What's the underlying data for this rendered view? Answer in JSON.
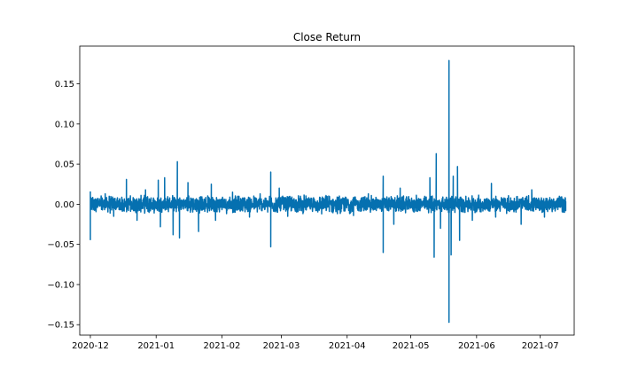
{
  "chart_data": {
    "type": "line",
    "title": "Close Return",
    "xlabel": "",
    "ylabel": "",
    "x_range": [
      "2020-11-26",
      "2021-07-17"
    ],
    "ylim": [
      -0.163,
      0.197
    ],
    "x_ticks": [
      "2020-12",
      "2021-01",
      "2021-02",
      "2021-03",
      "2021-04",
      "2021-05",
      "2021-06",
      "2021-07"
    ],
    "x_tick_dates": [
      "2020-12-01",
      "2021-01-01",
      "2021-02-01",
      "2021-03-01",
      "2021-04-01",
      "2021-05-01",
      "2021-06-01",
      "2021-07-01"
    ],
    "y_ticks": [
      "0.15",
      "0.10",
      "0.05",
      "0.00",
      "−0.05",
      "−0.10",
      "−0.15"
    ],
    "y_tick_values": [
      0.15,
      0.1,
      0.05,
      0.0,
      -0.05,
      -0.1,
      -0.15
    ],
    "grid": false,
    "legend": "none",
    "series": [
      {
        "color": "#0570b0",
        "noise_band": 0.012,
        "points": [
          {
            "x": "2020-12-01",
            "y": 0.016
          },
          {
            "x": "2020-12-01",
            "y": -0.044
          },
          {
            "x": "2020-12-08",
            "y": 0.013
          },
          {
            "x": "2020-12-12",
            "y": -0.015
          },
          {
            "x": "2020-12-18",
            "y": 0.031
          },
          {
            "x": "2020-12-23",
            "y": -0.02
          },
          {
            "x": "2020-12-27",
            "y": 0.018
          },
          {
            "x": "2021-01-02",
            "y": 0.03
          },
          {
            "x": "2021-01-03",
            "y": -0.028
          },
          {
            "x": "2021-01-05",
            "y": 0.033
          },
          {
            "x": "2021-01-09",
            "y": -0.038
          },
          {
            "x": "2021-01-11",
            "y": 0.053
          },
          {
            "x": "2021-01-12",
            "y": -0.042
          },
          {
            "x": "2021-01-16",
            "y": 0.027
          },
          {
            "x": "2021-01-21",
            "y": -0.034
          },
          {
            "x": "2021-01-27",
            "y": 0.025
          },
          {
            "x": "2021-01-29",
            "y": -0.02
          },
          {
            "x": "2021-02-06",
            "y": 0.015
          },
          {
            "x": "2021-02-14",
            "y": -0.016
          },
          {
            "x": "2021-02-19",
            "y": 0.013
          },
          {
            "x": "2021-02-24",
            "y": 0.04
          },
          {
            "x": "2021-02-24",
            "y": -0.053
          },
          {
            "x": "2021-02-28",
            "y": 0.02
          },
          {
            "x": "2021-03-04",
            "y": -0.015
          },
          {
            "x": "2021-03-10",
            "y": 0.01
          },
          {
            "x": "2021-03-20",
            "y": -0.012
          },
          {
            "x": "2021-04-04",
            "y": -0.014
          },
          {
            "x": "2021-04-11",
            "y": 0.013
          },
          {
            "x": "2021-04-18",
            "y": 0.035
          },
          {
            "x": "2021-04-18",
            "y": -0.06
          },
          {
            "x": "2021-04-23",
            "y": -0.025
          },
          {
            "x": "2021-04-26",
            "y": 0.02
          },
          {
            "x": "2021-05-10",
            "y": 0.033
          },
          {
            "x": "2021-05-12",
            "y": -0.066
          },
          {
            "x": "2021-05-13",
            "y": 0.063
          },
          {
            "x": "2021-05-15",
            "y": -0.03
          },
          {
            "x": "2021-05-19",
            "y": 0.179
          },
          {
            "x": "2021-05-19",
            "y": -0.147
          },
          {
            "x": "2021-05-19",
            "y": 0.135
          },
          {
            "x": "2021-05-20",
            "y": -0.063
          },
          {
            "x": "2021-05-21",
            "y": 0.035
          },
          {
            "x": "2021-05-23",
            "y": 0.047
          },
          {
            "x": "2021-05-24",
            "y": -0.045
          },
          {
            "x": "2021-05-30",
            "y": -0.02
          },
          {
            "x": "2021-06-08",
            "y": 0.026
          },
          {
            "x": "2021-06-10",
            "y": -0.016
          },
          {
            "x": "2021-06-22",
            "y": -0.025
          },
          {
            "x": "2021-06-27",
            "y": 0.018
          },
          {
            "x": "2021-07-03",
            "y": -0.016
          },
          {
            "x": "2021-07-10",
            "y": 0.01
          },
          {
            "x": "2021-07-13",
            "y": -0.008
          }
        ]
      }
    ]
  }
}
